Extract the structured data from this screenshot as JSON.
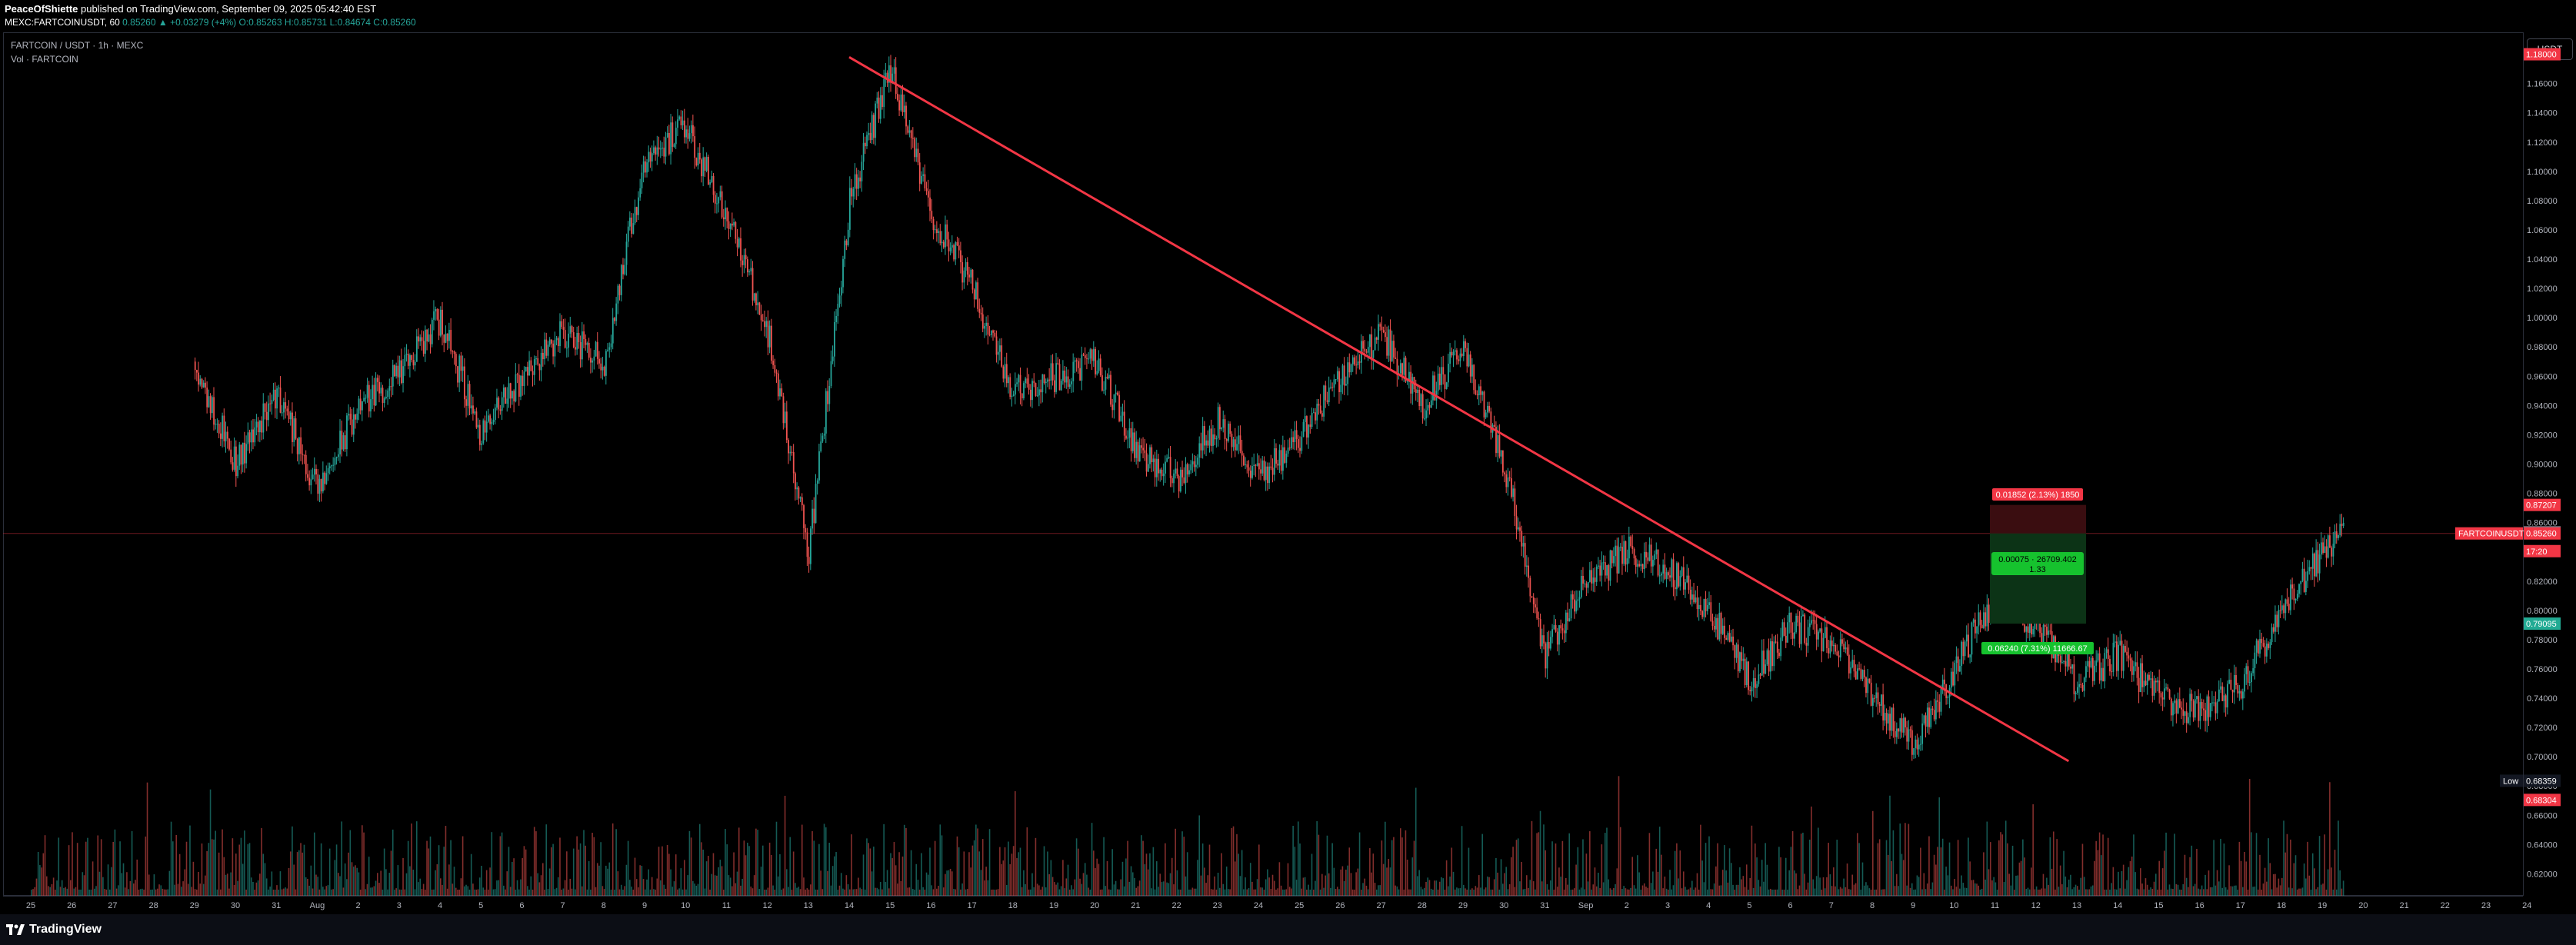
{
  "header": {
    "publisher_user": "PeaceOfShiette",
    "publisher_rest": " published on TradingView.com, September 09, 2025 05:42:40 EST",
    "symbol_line": "MEXC:FARTCOINUSDT, 60",
    "quote_text": "0.85260 ▲ +0.03279 (+4%) O:0.85263 H:0.85731 L:0.84674 C:0.85260"
  },
  "legend": {
    "main": "FARTCOIN / USDT · 1h · MEXC",
    "volume": "Vol · FARTCOIN"
  },
  "currency_button": "USDT",
  "price_axis": {
    "ticks": [
      "1.16000",
      "1.14000",
      "1.12000",
      "1.10000",
      "1.08000",
      "1.06000",
      "1.04000",
      "1.02000",
      "1.00000",
      "0.98000",
      "0.96000",
      "0.94000",
      "0.92000",
      "0.90000",
      "0.88000",
      "0.86000",
      "0.84000",
      "0.82000",
      "0.80000",
      "0.78000",
      "0.76000",
      "0.74000",
      "0.72000",
      "0.70000",
      "0.68000",
      "0.66000",
      "0.64000",
      "0.62000"
    ],
    "tags": [
      {
        "label": "1.18000",
        "color": "#f23645",
        "value": 1.18
      },
      {
        "label": "0.87207",
        "color": "#f23645",
        "value": 0.87207
      },
      {
        "label": "0.85335",
        "color": "#787b86",
        "value": 0.85335
      },
      {
        "label": "0.85260",
        "color": "#f23645",
        "value": 0.8526
      },
      {
        "label": "17:20",
        "color": "#f23645",
        "value": 0.8405
      },
      {
        "label": "0.79095",
        "color": "#22ab94",
        "value": 0.79095
      },
      {
        "label": "0.68359",
        "color": "#131722",
        "value": 0.68359
      },
      {
        "label": "0.68304",
        "color": "#f23645",
        "value": 0.6705
      }
    ],
    "low_label": "Low"
  },
  "symbol_tag": "FARTCOINUSDT",
  "time_axis": {
    "labels": [
      "25",
      "26",
      "27",
      "28",
      "29",
      "30",
      "31",
      "Aug",
      "2",
      "3",
      "4",
      "5",
      "6",
      "7",
      "8",
      "9",
      "10",
      "11",
      "12",
      "13",
      "14",
      "15",
      "16",
      "17",
      "18",
      "19",
      "20",
      "21",
      "22",
      "23",
      "24",
      "25",
      "26",
      "27",
      "28",
      "29",
      "30",
      "31",
      "Sep",
      "2",
      "3",
      "4",
      "5",
      "6",
      "7",
      "8",
      "9",
      "10",
      "11",
      "12",
      "13",
      "14",
      "15",
      "16",
      "17",
      "18",
      "19",
      "20",
      "21",
      "22",
      "23",
      "24"
    ]
  },
  "position_tool": {
    "stop_label": "0.01852 (2.13%) 1850",
    "mid_label_1": "0.00075 · 26709.402",
    "mid_label_2": "1.33",
    "target_label": "0.06240 (7.31%) 11666.67"
  },
  "colors": {
    "up": "#26a69a",
    "down": "#ef5350",
    "trendline": "#f23645",
    "stop_zone": "#3a0d10",
    "target_zone": "#0c3316"
  },
  "chart_data": {
    "type": "candlestick",
    "title": "FARTCOIN / USDT · 1h · MEXC",
    "ylim": [
      0.605,
      1.195
    ],
    "x_range_days": [
      "Jul 24",
      "Sep 24"
    ],
    "key_levels": {
      "last_price": 0.8526,
      "low": 0.68359,
      "stop": 0.87207,
      "target": 0.79095
    },
    "close_path": [
      [
        0,
        1.17
      ],
      [
        1,
        1.12
      ],
      [
        2,
        1.06
      ],
      [
        3,
        1.02
      ],
      [
        4,
        0.97
      ],
      [
        5,
        0.9
      ],
      [
        6,
        0.95
      ],
      [
        7,
        0.88
      ],
      [
        8,
        0.94
      ],
      [
        9,
        0.96
      ],
      [
        10,
        1.0
      ],
      [
        11,
        0.92
      ],
      [
        12,
        0.96
      ],
      [
        13,
        0.99
      ],
      [
        14,
        0.97
      ],
      [
        15,
        1.11
      ],
      [
        16,
        1.13
      ],
      [
        17,
        1.07
      ],
      [
        18,
        0.99
      ],
      [
        19,
        0.84
      ],
      [
        20,
        1.08
      ],
      [
        21,
        1.17
      ],
      [
        22,
        1.07
      ],
      [
        23,
        1.02
      ],
      [
        24,
        0.95
      ],
      [
        25,
        0.96
      ],
      [
        26,
        0.97
      ],
      [
        27,
        0.91
      ],
      [
        28,
        0.89
      ],
      [
        29,
        0.93
      ],
      [
        30,
        0.89
      ],
      [
        31,
        0.92
      ],
      [
        32,
        0.96
      ],
      [
        33,
        0.99
      ],
      [
        34,
        0.94
      ],
      [
        35,
        0.98
      ],
      [
        36,
        0.9
      ],
      [
        37,
        0.77
      ],
      [
        38,
        0.82
      ],
      [
        39,
        0.84
      ],
      [
        40,
        0.83
      ],
      [
        41,
        0.8
      ],
      [
        42,
        0.75
      ],
      [
        43,
        0.79
      ],
      [
        44,
        0.78
      ],
      [
        45,
        0.74
      ],
      [
        46,
        0.71
      ],
      [
        47,
        0.76
      ],
      [
        48,
        0.81
      ],
      [
        49,
        0.79
      ],
      [
        50,
        0.75
      ],
      [
        51,
        0.77
      ],
      [
        52,
        0.74
      ],
      [
        53,
        0.73
      ],
      [
        54,
        0.75
      ],
      [
        55,
        0.8
      ],
      [
        56,
        0.84
      ],
      [
        56.5,
        0.8526
      ]
    ],
    "trendline": {
      "x": [
        20.0,
        49.8
      ],
      "y": [
        1.178,
        0.697
      ]
    }
  }
}
